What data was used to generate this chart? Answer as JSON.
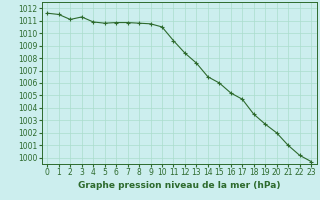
{
  "x": [
    0,
    1,
    2,
    3,
    4,
    5,
    6,
    7,
    8,
    9,
    10,
    11,
    12,
    13,
    14,
    15,
    16,
    17,
    18,
    19,
    20,
    21,
    22,
    23
  ],
  "y": [
    1011.6,
    1011.5,
    1011.1,
    1011.3,
    1010.9,
    1010.8,
    1010.85,
    1010.85,
    1010.8,
    1010.75,
    1010.5,
    1009.4,
    1008.4,
    1007.6,
    1006.5,
    1006.0,
    1005.2,
    1004.7,
    1003.5,
    1002.7,
    1002.0,
    1001.0,
    1000.2,
    999.7
  ],
  "line_color": "#2d6a2d",
  "marker": "+",
  "marker_color": "#2d6a2d",
  "bg_color": "#cceeee",
  "grid_color": "#aaddcc",
  "title": "Graphe pression niveau de la mer (hPa)",
  "xlabel": "",
  "ylabel": "",
  "ylim": [
    999.5,
    1012.5
  ],
  "xlim": [
    -0.5,
    23.5
  ],
  "yticks": [
    1000,
    1001,
    1002,
    1003,
    1004,
    1005,
    1006,
    1007,
    1008,
    1009,
    1010,
    1011,
    1012
  ],
  "xticks": [
    0,
    1,
    2,
    3,
    4,
    5,
    6,
    7,
    8,
    9,
    10,
    11,
    12,
    13,
    14,
    15,
    16,
    17,
    18,
    19,
    20,
    21,
    22,
    23
  ],
  "tick_color": "#2d6a2d",
  "title_color": "#2d6a2d",
  "title_fontsize": 6.5,
  "tick_fontsize": 5.5,
  "title_bold": true
}
